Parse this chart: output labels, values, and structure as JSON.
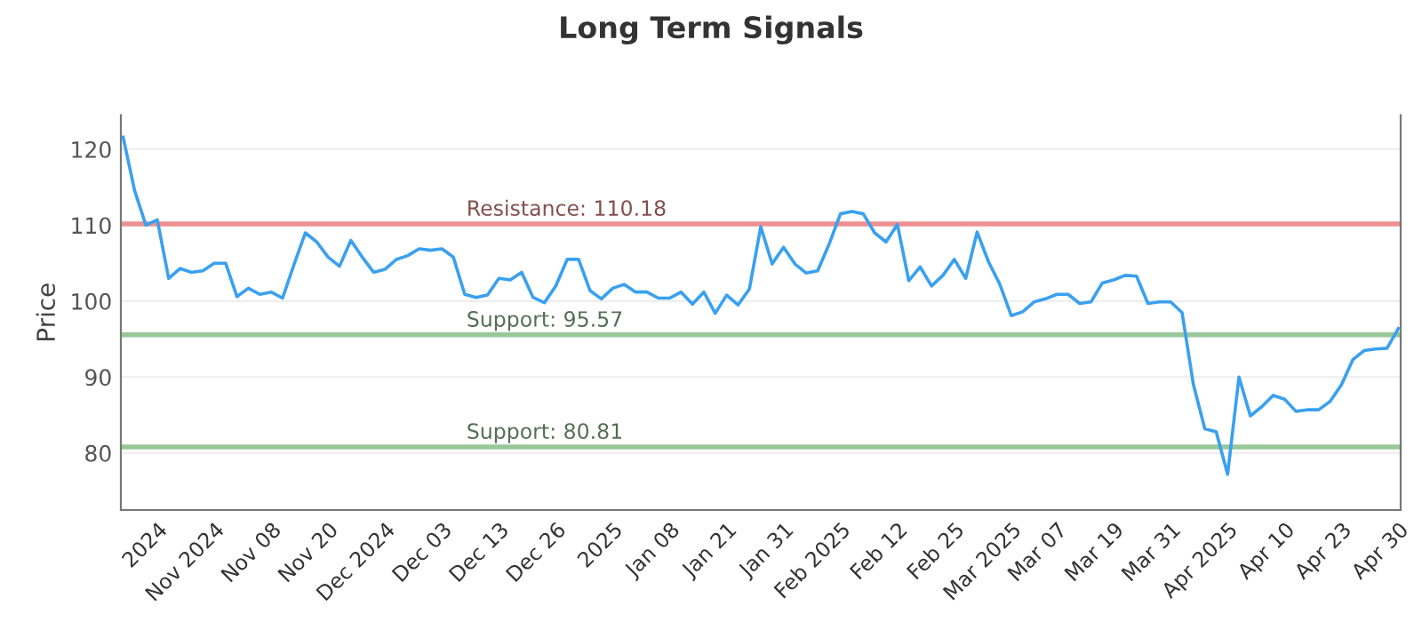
{
  "chart_data": {
    "type": "line",
    "title": "Long Term Signals",
    "ylabel": "Price",
    "categories": [
      null,
      null,
      null,
      "2024",
      null,
      null,
      null,
      null,
      "Nov 2024",
      null,
      null,
      null,
      null,
      "Nov 08",
      null,
      null,
      null,
      null,
      "Nov 20",
      null,
      null,
      null,
      null,
      "Dec 2024",
      null,
      null,
      null,
      null,
      "Dec 03",
      null,
      null,
      null,
      null,
      "Dec 13",
      null,
      null,
      null,
      null,
      "Dec 26",
      null,
      null,
      null,
      null,
      "2025",
      null,
      null,
      null,
      null,
      "Jan 08",
      null,
      null,
      null,
      null,
      "Jan 21",
      null,
      null,
      null,
      null,
      "Jan 31",
      null,
      null,
      null,
      null,
      "Feb 2025",
      null,
      null,
      null,
      null,
      "Feb 12",
      null,
      null,
      null,
      null,
      "Feb 25",
      null,
      null,
      null,
      null,
      "Mar 2025",
      null,
      null,
      null,
      "Mar 07",
      null,
      null,
      null,
      null,
      "Mar 19",
      null,
      null,
      null,
      null,
      "Mar 31",
      null,
      null,
      null,
      null,
      "Apr 2025",
      null,
      null,
      null,
      null,
      "Apr 10",
      null,
      null,
      null,
      null,
      "Apr 23",
      null,
      null,
      null,
      null,
      "Apr 30"
    ],
    "series": [
      {
        "color": "#3aa0f0",
        "values": [
          121.6,
          114.6,
          110,
          110.7,
          103,
          104.3,
          103.8,
          104,
          105,
          105,
          100.6,
          101.7,
          100.9,
          101.2,
          100.4,
          104.8,
          109,
          107.8,
          105.8,
          104.6,
          108,
          105.8,
          103.8,
          104.2,
          105.5,
          106,
          106.9,
          106.7,
          106.9,
          105.8,
          100.9,
          100.5,
          100.8,
          103,
          102.8,
          103.8,
          100.5,
          99.8,
          102,
          105.5,
          105.5,
          101.4,
          100.3,
          101.7,
          102.2,
          101.2,
          101.2,
          100.4,
          100.4,
          101.2,
          99.6,
          101.2,
          98.4,
          100.8,
          99.5,
          101.6,
          109.8,
          104.9,
          107.1,
          104.9,
          103.7,
          104,
          107.5,
          111.5,
          111.8,
          111.5,
          109,
          107.8,
          110.1,
          102.7,
          104.5,
          102,
          103.4,
          105.5,
          103,
          109.1,
          105.2,
          102.2,
          98.1,
          98.6,
          99.9,
          100.3,
          100.9,
          100.9,
          99.7,
          99.9,
          102.4,
          102.8,
          103.4,
          103.3,
          99.7,
          99.9,
          99.9,
          98.5,
          89,
          83.2,
          82.8,
          77.2,
          90,
          84.9,
          86.1,
          87.6,
          87.1,
          85.5,
          85.7,
          85.7,
          86.8,
          89,
          92.3,
          93.5,
          93.7,
          93.8,
          96.4
        ]
      }
    ],
    "ylim": [
      72.5,
      124.5
    ],
    "yticks": [
      80,
      90,
      100,
      110,
      120
    ],
    "grid": "y",
    "ref_lines": [
      {
        "axis": "y",
        "value": 110.18,
        "label": "Resistance: 110.18",
        "color": "#ee9090"
      },
      {
        "axis": "y",
        "value": 95.57,
        "label": "Support: 95.57",
        "color": "#98c898"
      },
      {
        "axis": "y",
        "value": 80.81,
        "label": "Support: 80.81",
        "color": "#98c898"
      }
    ]
  }
}
